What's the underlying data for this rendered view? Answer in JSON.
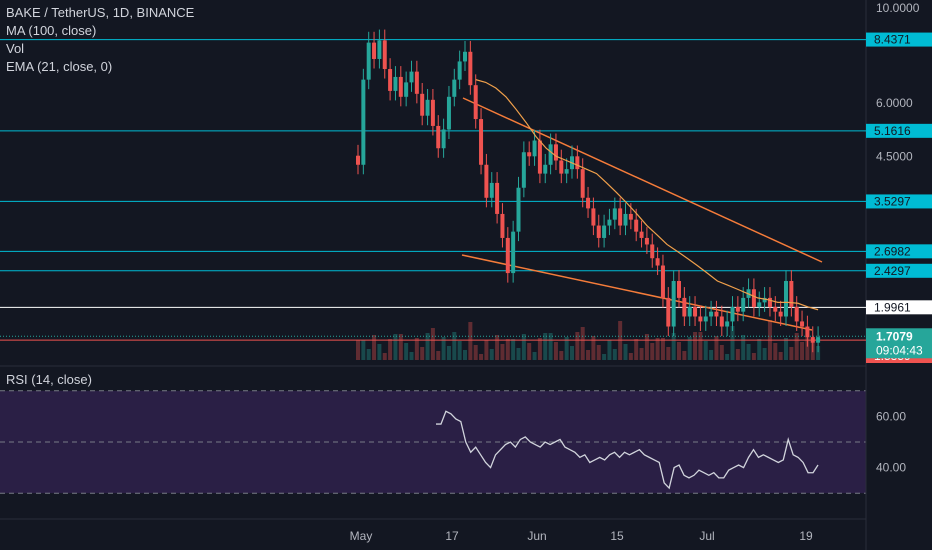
{
  "header": {
    "title": "BAKE / TetherUS, 1D, BINANCE",
    "indicators": [
      "MA (100, close)",
      "Vol",
      "EMA (21, close, 0)"
    ]
  },
  "rsi_panel": {
    "label": "RSI (14, close)"
  },
  "colors": {
    "background": "#131722",
    "up": "#26a69a",
    "down": "#ef5350",
    "level_line": "#00bcd4",
    "trendline": "#f57c3a",
    "ema": "#f0a04b",
    "rsi_line": "#d1d4dc",
    "rsi_band": "#2a1f45"
  },
  "chart_data": [
    {
      "type": "candlestick",
      "title": "BAKE / TetherUS, 1D, BINANCE",
      "y_scale": "log",
      "ylim": [
        1.5,
        10.0
      ],
      "y_ticks": [
        {
          "label": "10.0000",
          "value": 10.0
        },
        {
          "label": "6.0000",
          "value": 6.0
        },
        {
          "label": "4.5000",
          "value": 4.5
        }
      ],
      "x_ticks": [
        "May",
        "17",
        "Jun",
        "15",
        "Jul",
        "19"
      ],
      "price_levels": [
        {
          "label": "8.4371",
          "value": 8.4371,
          "color": "#00bcd4"
        },
        {
          "label": "5.1616",
          "value": 5.1616,
          "color": "#00bcd4"
        },
        {
          "label": "3.5297",
          "value": 3.5297,
          "color": "#00bcd4"
        },
        {
          "label": "2.6982",
          "value": 2.6982,
          "color": "#00bcd4"
        },
        {
          "label": "2.4297",
          "value": 2.4297,
          "color": "#00bcd4"
        },
        {
          "label": "1.9961",
          "value": 1.9961,
          "color": "#ffffff"
        },
        {
          "label": "1.6724",
          "value": 1.6724,
          "color": "#ef5350"
        },
        {
          "label": "1.5359",
          "value": 1.5359,
          "color": "#ef5350"
        }
      ],
      "current_price": {
        "label": "1.7079",
        "value": 1.7079,
        "countdown": "09:04:43"
      },
      "candles_close": [
        4.3,
        6.8,
        8.3,
        7.6,
        8.4,
        7.2,
        6.4,
        6.9,
        6.2,
        6.7,
        7.1,
        6.3,
        5.6,
        6.1,
        5.3,
        4.7,
        5.2,
        6.2,
        6.8,
        7.5,
        7.9,
        6.6,
        5.5,
        4.3,
        3.6,
        3.9,
        3.3,
        2.9,
        2.4,
        3.0,
        3.8,
        4.6,
        4.5,
        4.9,
        4.1,
        4.3,
        4.8,
        4.4,
        4.1,
        4.2,
        4.5,
        4.2,
        3.6,
        3.4,
        3.1,
        2.9,
        3.1,
        3.2,
        3.4,
        3.1,
        3.3,
        3.2,
        3.0,
        2.9,
        2.8,
        2.6,
        2.5,
        2.1,
        1.8,
        2.3,
        2.1,
        1.9,
        2.0,
        1.9,
        1.85,
        1.9,
        1.95,
        1.9,
        1.8,
        1.85,
        2.0,
        1.95,
        2.1,
        2.2,
        2.0,
        2.05,
        2.1,
        2.0,
        1.95,
        1.9,
        2.3,
        2.0,
        1.85,
        1.8,
        1.7,
        1.65,
        1.7
      ],
      "ema_21": [
        6.8,
        6.7,
        6.5,
        6.2,
        5.8,
        5.4,
        5.0,
        4.7,
        4.5,
        4.4,
        4.3,
        4.2,
        4.1,
        3.9,
        3.7,
        3.5,
        3.3,
        3.1,
        2.95,
        2.8,
        2.7,
        2.6,
        2.5,
        2.4,
        2.3,
        2.25,
        2.2,
        2.15,
        2.1,
        2.08,
        2.05,
        2.05,
        2.04,
        2.0,
        1.97
      ],
      "rsi": {
        "ylim": [
          25,
          75
        ],
        "y_ticks": [
          {
            "label": "60.00",
            "value": 60
          },
          {
            "label": "40.00",
            "value": 40
          }
        ],
        "bands": [
          70,
          50,
          30
        ],
        "values": [
          57,
          57,
          62,
          61,
          59,
          58,
          50,
          46,
          48,
          45,
          42,
          40,
          45,
          47,
          49,
          50,
          48,
          51,
          52,
          50,
          49,
          48,
          50,
          49,
          50,
          51,
          48,
          47,
          46,
          44,
          45,
          42,
          43,
          44,
          43,
          45,
          46,
          44,
          46,
          45,
          46,
          47,
          45,
          44,
          43,
          42,
          34,
          32,
          40,
          41,
          37,
          36,
          37,
          39,
          38,
          37,
          38,
          36,
          36,
          39,
          40,
          41,
          40,
          44,
          47,
          44,
          45,
          44,
          43,
          42,
          43,
          51,
          45,
          44,
          42,
          38,
          38,
          41
        ]
      }
    }
  ]
}
